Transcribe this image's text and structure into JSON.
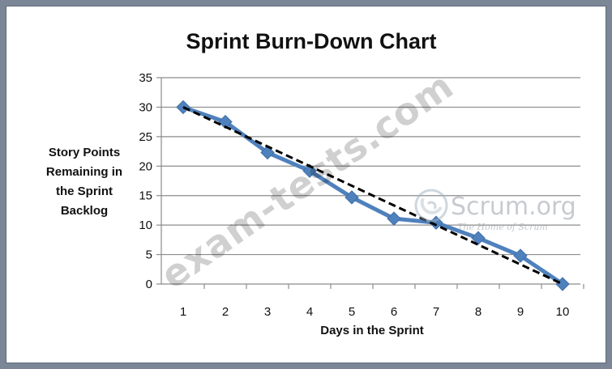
{
  "chart_data": {
    "type": "line",
    "title": "Sprint Burn-Down Chart",
    "xlabel": "Days in the Sprint",
    "ylabel": [
      "Story Points",
      "Remaining in",
      "the Sprint",
      "Backlog"
    ],
    "categories": [
      1,
      2,
      3,
      4,
      5,
      6,
      7,
      8,
      9,
      10
    ],
    "x_tick_labels": [
      "1",
      "2",
      "3",
      "4",
      "5",
      "6",
      "7",
      "8",
      "9",
      "10"
    ],
    "y_tick_labels": [
      "0",
      "5",
      "10",
      "15",
      "20",
      "25",
      "30",
      "35"
    ],
    "ylim": [
      0,
      35
    ],
    "y_ticks": [
      0,
      5,
      10,
      15,
      20,
      25,
      30,
      35
    ],
    "grid": true,
    "legend": "none",
    "series": [
      {
        "values": [
          30,
          27.5,
          22.3,
          19.2,
          14.7,
          11.1,
          10.4,
          7.8,
          4.8,
          0
        ],
        "color": "#4f81bd",
        "style": "solid",
        "marker": "diamond"
      },
      {
        "values": [
          30,
          26.67,
          23.33,
          20,
          16.67,
          13.33,
          10,
          6.67,
          3.33,
          0
        ],
        "color": "#000000",
        "style": "dashed",
        "marker": "none"
      }
    ]
  },
  "watermark": {
    "text": "exam-tests.com"
  },
  "logo": {
    "name": "Scrum.org",
    "tagline": "The Home of Scrum",
    "icon": "scrum-swirl-icon"
  }
}
